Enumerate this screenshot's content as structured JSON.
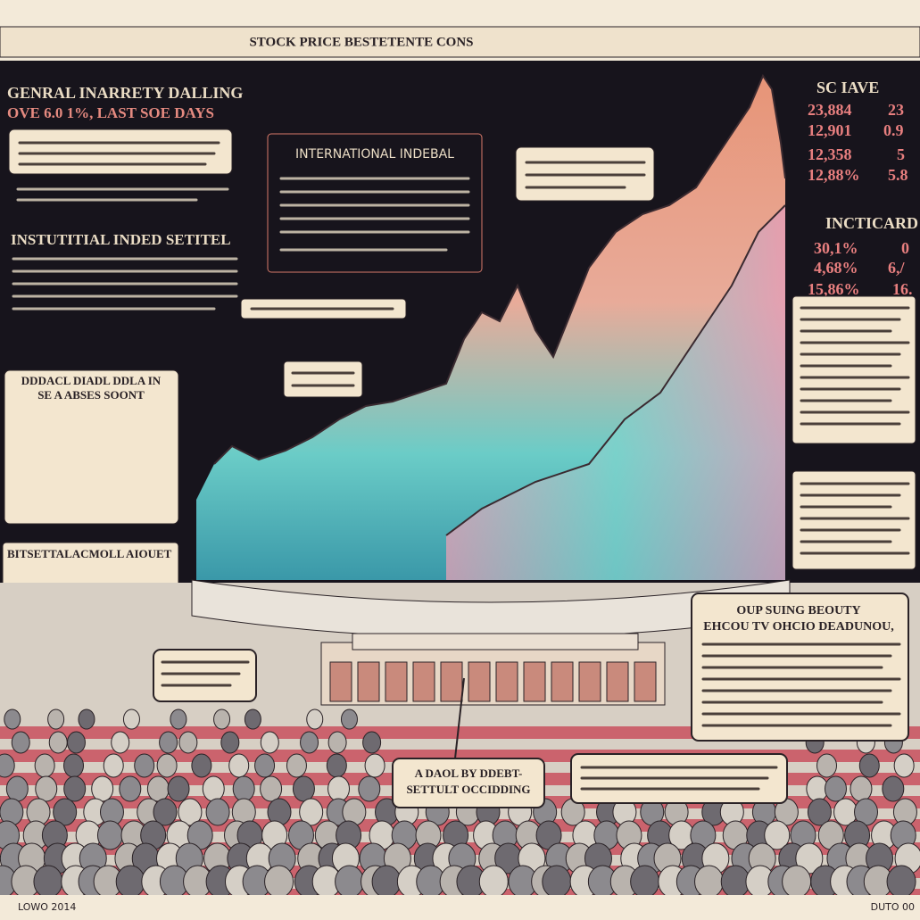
{
  "header": {
    "title": "STOCK PRICE BESTETENTE CONS"
  },
  "top_left": {
    "title": "GENRAL INARRETY DALLING",
    "subtitle": "OVE 6.0 1%, LAST SOE DAYS"
  },
  "left_mid": {
    "title": "INSTUTITIAL INDED SETITEL"
  },
  "center_box": {
    "title": "INTERNATIONAL INDEBAL"
  },
  "stats": {
    "heading": "SC IAVE",
    "values": [
      "23,884",
      "12,901",
      "12,358",
      "12,88%"
    ],
    "side_values": [
      "23",
      "0.9",
      "5",
      "5.8"
    ],
    "heading2": "INCTICARD",
    "values2": [
      "30,1%",
      "4,68%",
      "15,86%"
    ],
    "side_values2": [
      "0",
      "6,/",
      "16."
    ]
  },
  "left_box": {
    "lines": [
      "DDDACL DIADL DDLA IN",
      "SE A ABSES SOONT"
    ]
  },
  "left_bottom": {
    "title": "BITSETTALACMOLL AIOUET"
  },
  "bubble_right": {
    "lines": [
      "OUP SUING BEOUTY",
      "EHCOU TV OHCIO DEADUNOU,"
    ]
  },
  "bubble_center": {
    "lines": [
      "A DAOL BY DDEBT-",
      "SETTULT OCCIDDING"
    ]
  },
  "footer": {
    "left": "LOWO 2014",
    "right": "DUTO 00"
  }
}
